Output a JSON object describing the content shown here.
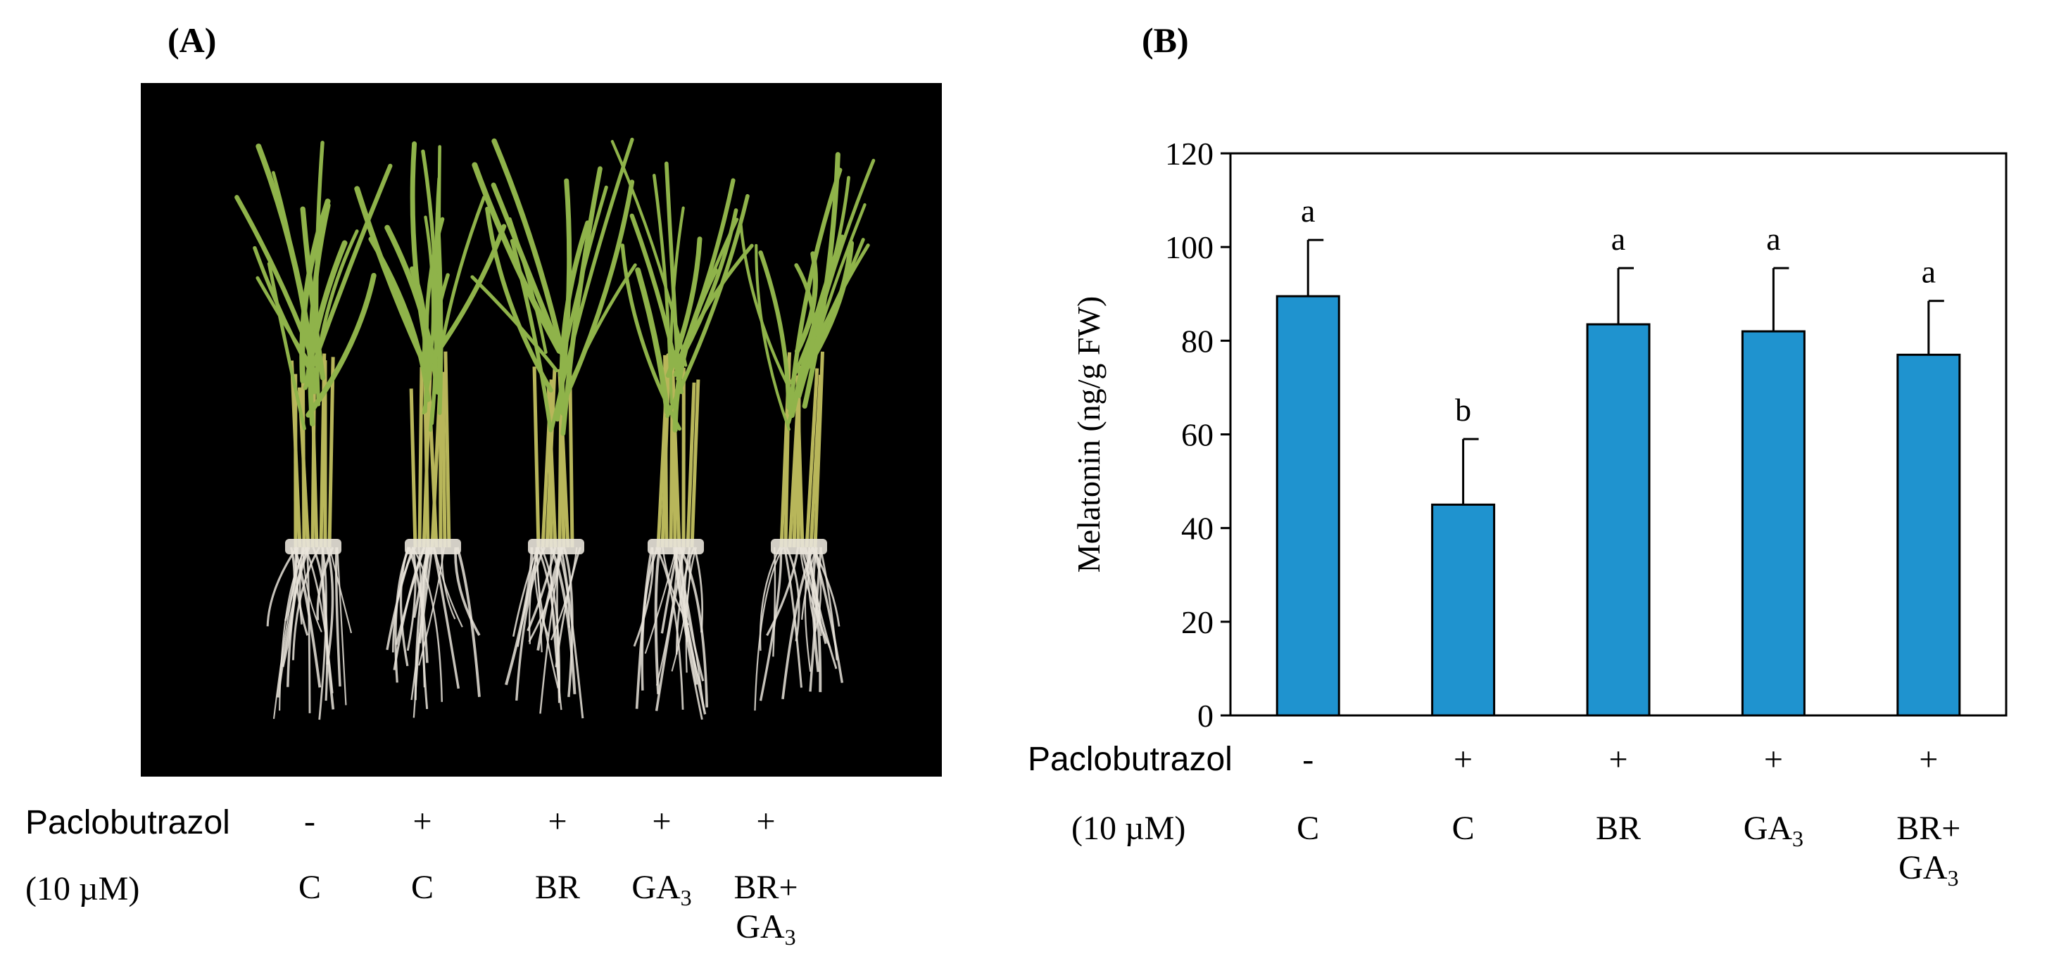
{
  "panel_a": {
    "label": "(A)"
  },
  "panel_b": {
    "label": "(B)"
  },
  "treatment_table": {
    "row1_label": "Paclobutrazol",
    "row2_label": "(10 µM)",
    "paclobutrazol": [
      "-",
      "+",
      "+",
      "+",
      "+"
    ],
    "treatments": [
      {
        "main": "C",
        "line2": "",
        "sub": ""
      },
      {
        "main": "C",
        "line2": "",
        "sub": ""
      },
      {
        "main": "BR",
        "line2": "",
        "sub": ""
      },
      {
        "main": "GA",
        "line2": "",
        "sub": "3"
      },
      {
        "main": "BR+",
        "line2": "GA",
        "sub": "3"
      }
    ]
  },
  "chart_data": {
    "type": "bar",
    "categories": [
      "C (-)",
      "C (+)",
      "BR (+)",
      "GA3 (+)",
      "BR+GA3 (+)"
    ],
    "values": [
      89.5,
      45,
      83.5,
      82,
      77
    ],
    "errors": [
      12,
      14,
      12,
      13.5,
      11.5
    ],
    "significance": [
      "a",
      "b",
      "a",
      "a",
      "a"
    ],
    "ylabel": "Melatonin (ng/g FW)",
    "ylim": [
      0,
      120
    ],
    "yticks": [
      0,
      20,
      40,
      60,
      80,
      100,
      120
    ],
    "grid": false,
    "bar_color": "#1f93cf"
  },
  "colors": {
    "photo_background": "#000000",
    "leaf_green": "#8fb34a",
    "root_white": "#e9e4da"
  }
}
